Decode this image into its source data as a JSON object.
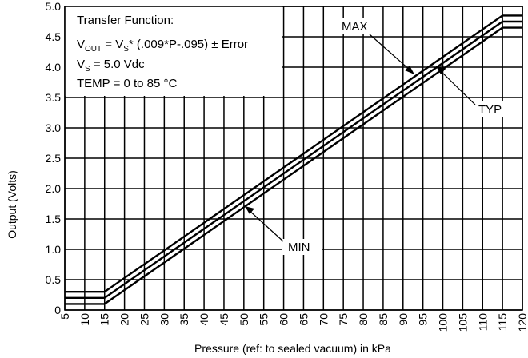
{
  "chart_data": {
    "type": "line",
    "title": "",
    "xlabel": "Pressure (ref: to sealed vacuum) in kPa",
    "ylabel": "Output (Volts)",
    "xlim": [
      5,
      120
    ],
    "ylim": [
      0,
      5.0
    ],
    "grid": true,
    "x_ticks": [
      5,
      10,
      15,
      20,
      25,
      30,
      35,
      40,
      45,
      50,
      55,
      60,
      65,
      70,
      75,
      80,
      85,
      90,
      95,
      100,
      105,
      110,
      115,
      120
    ],
    "y_ticks": [
      0,
      0.5,
      1.0,
      1.5,
      2.0,
      2.5,
      3.0,
      3.5,
      4.0,
      4.5,
      5.0
    ],
    "y_tick_labels": [
      "0",
      "0.5",
      "1.0",
      "1.5",
      "2.0",
      "2.5",
      "3.0",
      "3.5",
      "4.0",
      "4.5",
      "5.0"
    ],
    "series": [
      {
        "name": "MAX",
        "points": [
          [
            5,
            0.3
          ],
          [
            15,
            0.3
          ],
          [
            115,
            4.85
          ],
          [
            120,
            4.85
          ]
        ]
      },
      {
        "name": "TYP",
        "points": [
          [
            5,
            0.2
          ],
          [
            15,
            0.2
          ],
          [
            115,
            4.75
          ],
          [
            120,
            4.75
          ]
        ]
      },
      {
        "name": "MIN",
        "points": [
          [
            5,
            0.1
          ],
          [
            15,
            0.1
          ],
          [
            115,
            4.65
          ],
          [
            120,
            4.65
          ]
        ]
      }
    ],
    "annotations": {
      "line1": "Transfer Function:",
      "vout_pre": "V",
      "vout_sub": "OUT",
      "vout_mid": " = V",
      "vout_sub2": "S",
      "vout_post": "* (.009*P-.095) ± Error",
      "vs_pre": "V",
      "vs_sub": "S",
      "vs_post": " = 5.0 Vdc",
      "temp": "TEMP = 0 to 85 °C"
    }
  }
}
